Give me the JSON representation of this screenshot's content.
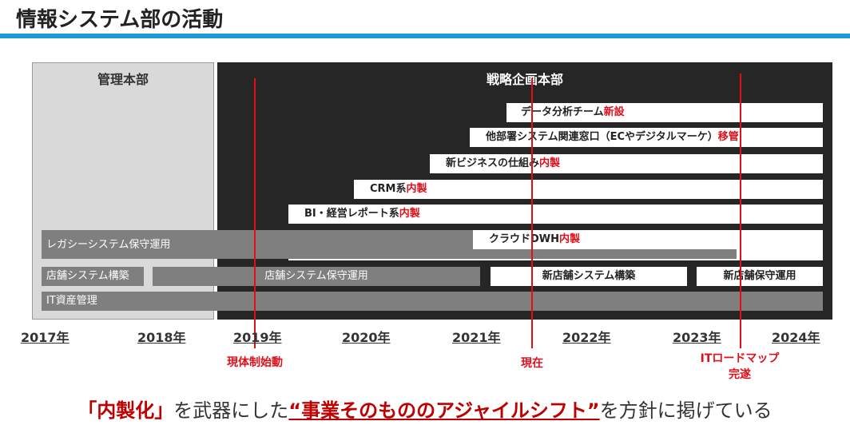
{
  "title": "情報システム部の活動",
  "panels": {
    "left": "管理本部",
    "right": "戦略企画本部"
  },
  "tasks": [
    {
      "text": "データ分析チーム",
      "red": "新設"
    },
    {
      "text": "他部署システム関連窓口（ECやデジタルマーケ）",
      "red": "移管"
    },
    {
      "text": "新ビジネスの仕組み",
      "red": "内製"
    },
    {
      "text": "CRM系",
      "red": "内製"
    },
    {
      "text": "BI・経営レポート系",
      "red": "内製"
    },
    {
      "text": "クラウドDWH",
      "red": "内製"
    }
  ],
  "legacy": "レガシーシステム保守運用",
  "store": {
    "build": "店舗システム構築",
    "ops": "店舗システム保守運用",
    "new_build": "新店舗システム構築",
    "new_ops": "新店舗保守運用"
  },
  "it_asset": "IT資産管理",
  "years": [
    "2017年",
    "2018年",
    "2019年",
    "2020年",
    "2021年",
    "2022年",
    "2023年",
    "2024年"
  ],
  "markers": {
    "start": "現体制始動",
    "now": "現在",
    "roadmap_1": "ITロードマップ",
    "roadmap_2": "完遂"
  },
  "bottom": {
    "q1": "「内製化」",
    "t1": "を武器にした",
    "q2": "“事業そのもののアジャイルシフト”",
    "t2": "を方針に掲げている"
  },
  "colors": {
    "accent_blue": "#1a9bd7",
    "red": "#e0101b",
    "dark_panel": "#262626",
    "gray_bar": "#7f7f7f"
  }
}
